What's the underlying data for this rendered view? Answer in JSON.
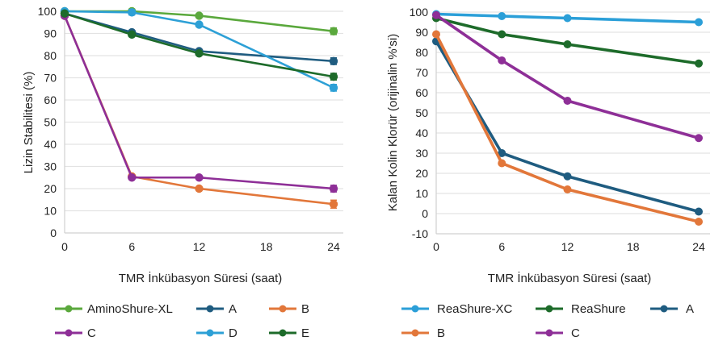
{
  "chart_data": [
    {
      "type": "line",
      "id": "left",
      "title": "",
      "xlabel": "TMR İnkübasyon Süresi (saat)",
      "ylabel": "Lizin Stabilitesi (%)",
      "x": [
        0,
        6,
        12,
        24
      ],
      "xticks": [
        "0",
        "6",
        "12",
        "18",
        "24"
      ],
      "xtick_values": [
        0,
        6,
        12,
        18,
        24
      ],
      "yticks": [
        "0",
        "10",
        "20",
        "30",
        "40",
        "50",
        "60",
        "70",
        "80",
        "90",
        "100"
      ],
      "ytick_values": [
        0,
        10,
        20,
        30,
        40,
        50,
        60,
        70,
        80,
        90,
        100
      ],
      "xlim": [
        0,
        24
      ],
      "ylim": [
        0,
        100
      ],
      "grid": true,
      "legend_position": "bottom",
      "error_bars": true,
      "series": [
        {
          "name": "AminoShure-XL",
          "color": "#5aa83c",
          "values": [
            100,
            100,
            98,
            91
          ],
          "errors": [
            0.5,
            1,
            0.5,
            1.5
          ]
        },
        {
          "name": "A",
          "color": "#1f5c80",
          "values": [
            99,
            90.5,
            82,
            77.5
          ],
          "errors": [
            0.5,
            0.8,
            0.8,
            1.5
          ]
        },
        {
          "name": "B",
          "color": "#e2773a",
          "values": [
            98,
            25.5,
            20,
            13
          ],
          "errors": [
            0.5,
            0.8,
            0.8,
            1.8
          ]
        },
        {
          "name": "C",
          "color": "#8e2f97",
          "values": [
            98,
            25,
            25,
            20
          ],
          "errors": [
            0.5,
            0.8,
            0.8,
            1.5
          ]
        },
        {
          "name": "D",
          "color": "#2da0d6",
          "values": [
            100,
            99.5,
            94,
            65.5
          ],
          "errors": [
            0.5,
            1.2,
            1,
            1.5
          ]
        },
        {
          "name": "E",
          "color": "#1d6b2a",
          "values": [
            99,
            89.5,
            81,
            70.5
          ],
          "errors": [
            0.5,
            0.8,
            0.8,
            1.5
          ]
        }
      ]
    },
    {
      "type": "line",
      "id": "right",
      "title": "",
      "xlabel": "TMR İnkübasyon Süresi (saat)",
      "ylabel": "Kalan Kolin Klorür  (orijinalin %'si)",
      "x": [
        0,
        6,
        12,
        24
      ],
      "xticks": [
        "0",
        "6",
        "12",
        "18",
        "24"
      ],
      "xtick_values": [
        0,
        6,
        12,
        18,
        24
      ],
      "yticks": [
        "-10",
        "0",
        "10",
        "20",
        "30",
        "40",
        "50",
        "60",
        "70",
        "80",
        "90",
        "100"
      ],
      "ytick_values": [
        -10,
        0,
        10,
        20,
        30,
        40,
        50,
        60,
        70,
        80,
        90,
        100
      ],
      "xlim": [
        0,
        24
      ],
      "ylim": [
        -10,
        100
      ],
      "grid": true,
      "legend_position": "bottom",
      "error_bars": false,
      "series": [
        {
          "name": "ReaShure-XC",
          "color": "#2b9fd8",
          "values": [
            99,
            98,
            97,
            95
          ]
        },
        {
          "name": "ReaShure",
          "color": "#1d6b2a",
          "values": [
            97,
            89,
            84,
            74.5
          ]
        },
        {
          "name": "A",
          "color": "#1f5c80",
          "values": [
            85.5,
            30,
            18.5,
            1
          ]
        },
        {
          "name": "B",
          "color": "#e2773a",
          "values": [
            89,
            25,
            12,
            -4
          ]
        },
        {
          "name": "C",
          "color": "#8e2f97",
          "values": [
            98.5,
            76,
            56,
            37.5
          ]
        }
      ]
    }
  ]
}
